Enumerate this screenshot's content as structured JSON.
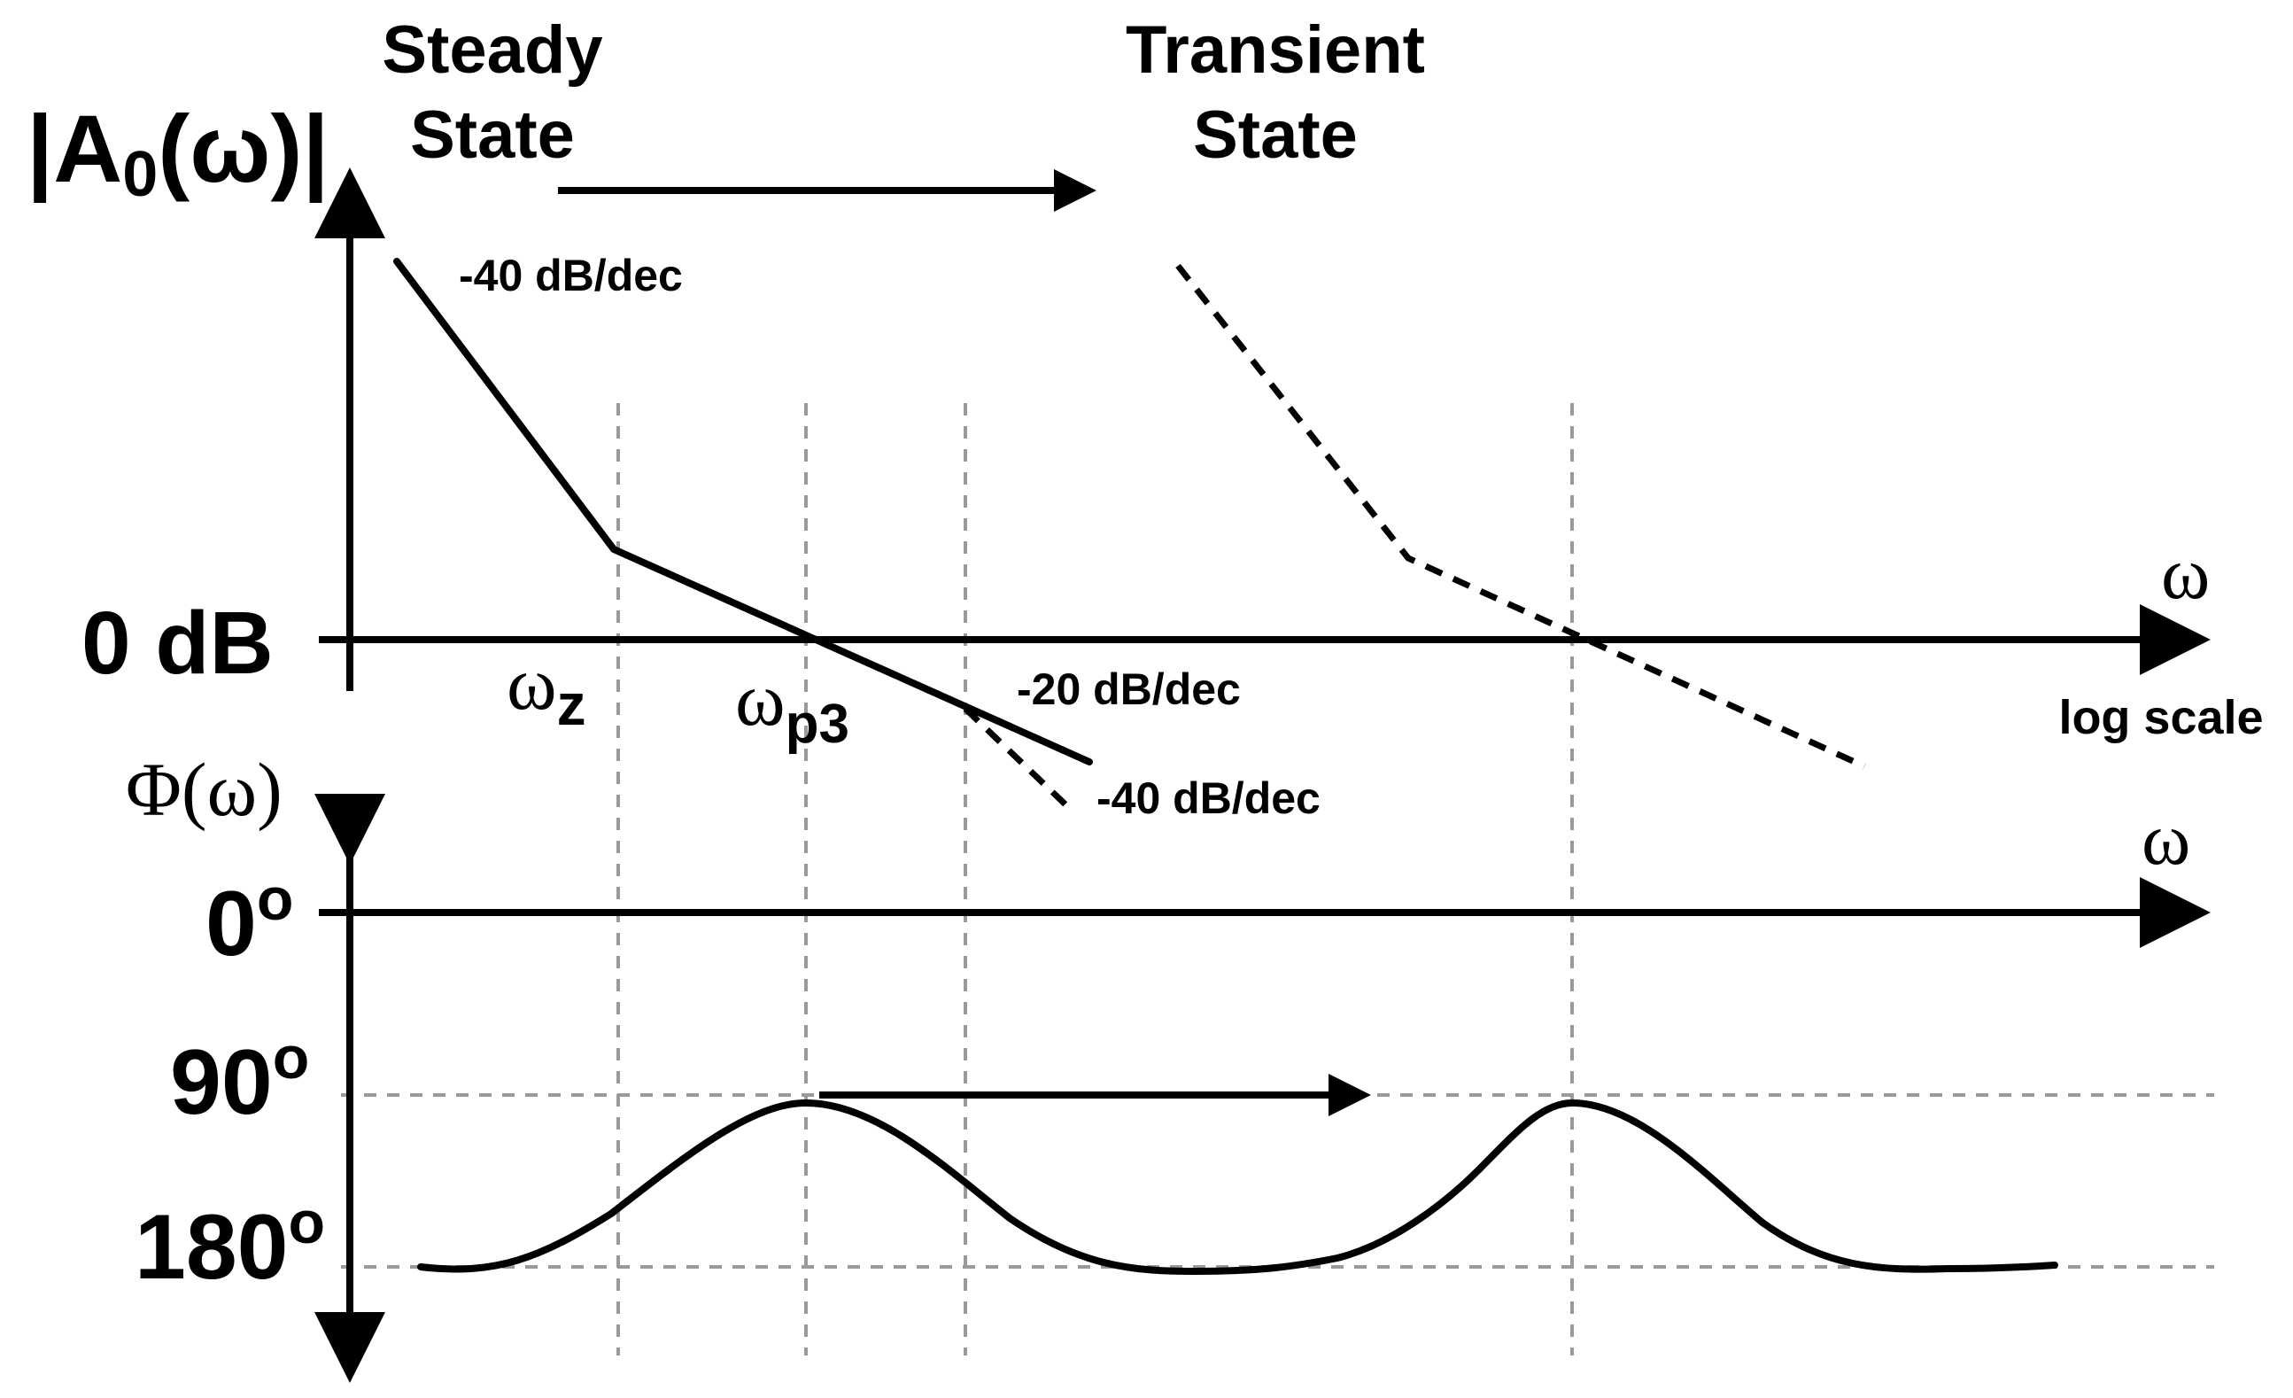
{
  "labels": {
    "steady_state_line1": "Steady",
    "steady_state_line2": "State",
    "transient_state_line1": "Transient",
    "transient_state_line2": "State",
    "magnitude_prefix": "|A",
    "magnitude_sub": "0",
    "magnitude_suffix": "(ω)|",
    "zero_db": "0 dB",
    "omega_mag_axis": "ω",
    "log_scale": "log scale",
    "slope_first": "-40 dB/dec",
    "slope_second": "-20 dB/dec",
    "slope_third": "-40 dB/dec",
    "omega_z_main": "ω",
    "omega_z_sub": "z",
    "omega_p3_main": "ω",
    "omega_p3_sub": "p3",
    "phase_axis": "Φ(ω)",
    "omega_phase_axis": "ω",
    "phase_0": "0",
    "phase_90": "90",
    "phase_180": "180",
    "degree_mark": "o"
  }
}
